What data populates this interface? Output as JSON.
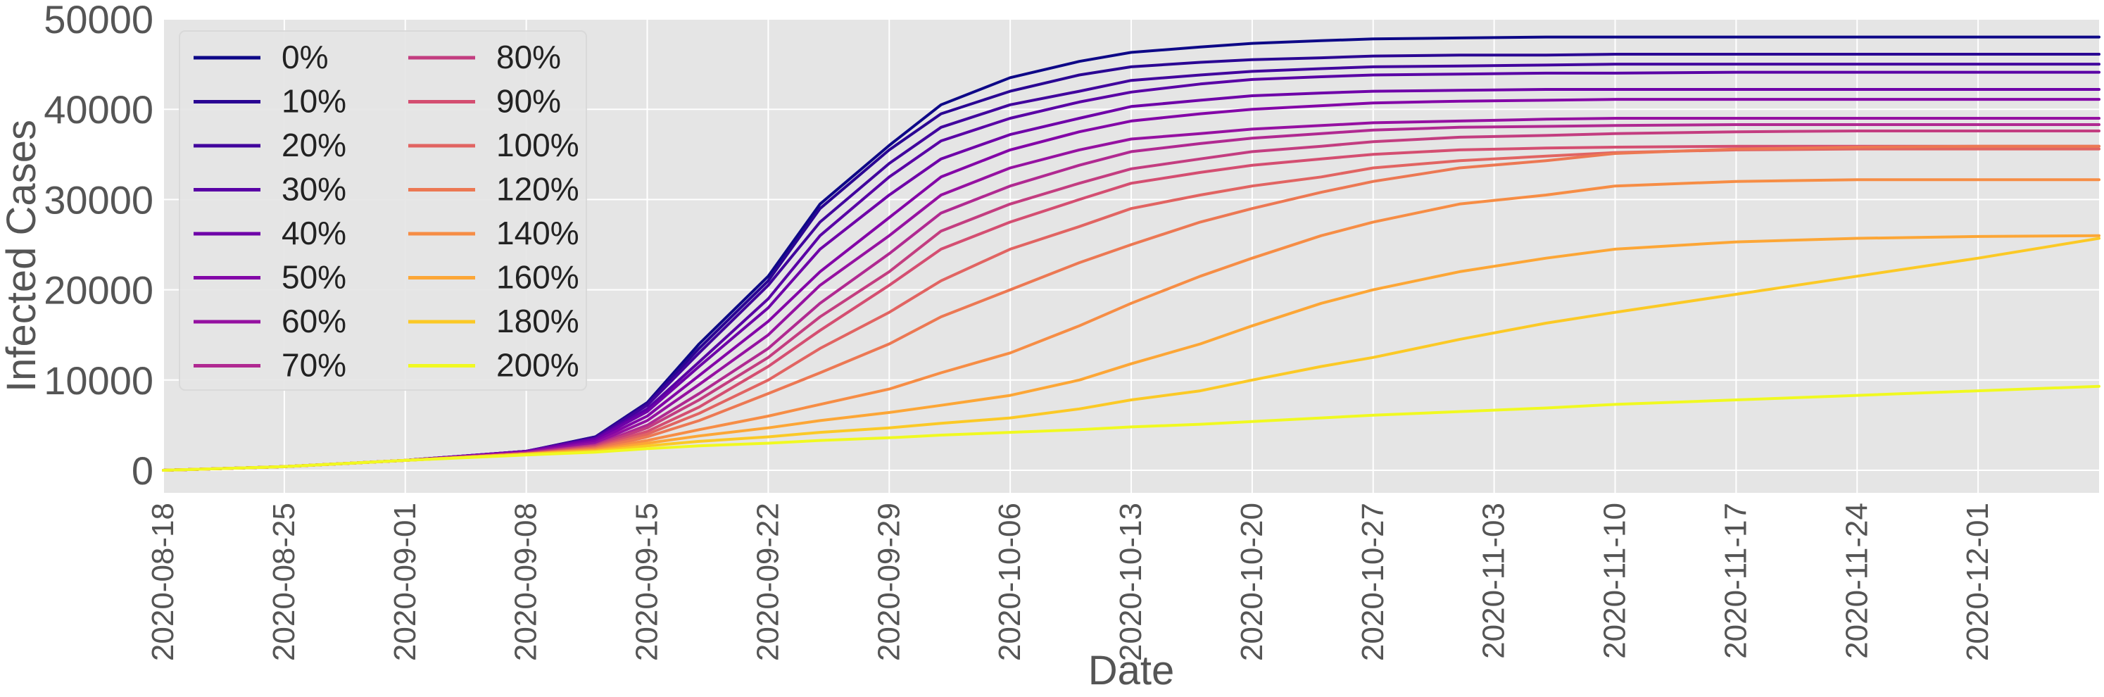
{
  "chart_data": {
    "type": "line",
    "xlabel": "Date",
    "ylabel": "Infected Cases",
    "ylim": [
      -2500,
      50000
    ],
    "xlim": [
      "2020-08-18",
      "2020-12-08"
    ],
    "y_ticks": [
      0,
      10000,
      20000,
      30000,
      40000,
      50000
    ],
    "x_ticks": [
      "2020-08-18",
      "2020-08-25",
      "2020-09-01",
      "2020-09-08",
      "2020-09-15",
      "2020-09-22",
      "2020-09-29",
      "2020-10-06",
      "2020-10-13",
      "2020-10-20",
      "2020-10-27",
      "2020-11-03",
      "2020-11-10",
      "2020-11-17",
      "2020-11-24",
      "2020-12-01"
    ],
    "grid": true,
    "background": "#e5e5e5",
    "legend_position": "top-left",
    "x_dates": [
      "2020-08-18",
      "2020-08-25",
      "2020-09-01",
      "2020-09-08",
      "2020-09-12",
      "2020-09-15",
      "2020-09-18",
      "2020-09-22",
      "2020-09-25",
      "2020-09-29",
      "2020-10-02",
      "2020-10-06",
      "2020-10-10",
      "2020-10-13",
      "2020-10-17",
      "2020-10-20",
      "2020-10-24",
      "2020-10-27",
      "2020-11-01",
      "2020-11-06",
      "2020-11-10",
      "2020-11-17",
      "2020-11-24",
      "2020-12-01",
      "2020-12-08"
    ],
    "series": [
      {
        "name": "0%",
        "color": "#0d0887",
        "values": [
          0,
          400,
          1100,
          2100,
          3700,
          7500,
          14000,
          21500,
          29500,
          36000,
          40500,
          43500,
          45300,
          46300,
          46900,
          47300,
          47600,
          47800,
          47900,
          48000,
          48000,
          48000,
          48000,
          48000,
          48000
        ]
      },
      {
        "name": "10%",
        "color": "#2a0593",
        "values": [
          0,
          400,
          1100,
          2100,
          3700,
          7400,
          13500,
          21000,
          29000,
          35500,
          39500,
          42000,
          43800,
          44700,
          45200,
          45500,
          45700,
          45900,
          46000,
          46000,
          46100,
          46100,
          46100,
          46100,
          46100
        ]
      },
      {
        "name": "20%",
        "color": "#41049d",
        "values": [
          0,
          400,
          1100,
          2100,
          3600,
          7200,
          13000,
          20500,
          27500,
          34000,
          38000,
          40500,
          42000,
          43200,
          43800,
          44200,
          44500,
          44700,
          44800,
          44900,
          45000,
          45000,
          45000,
          45000,
          45000
        ]
      },
      {
        "name": "30%",
        "color": "#5901a5",
        "values": [
          0,
          400,
          1100,
          2100,
          3500,
          6800,
          12000,
          19000,
          26000,
          32500,
          36500,
          39000,
          40800,
          41900,
          42800,
          43300,
          43600,
          43800,
          43900,
          44000,
          44000,
          44100,
          44100,
          44100,
          44100
        ]
      },
      {
        "name": "40%",
        "color": "#6e00a8",
        "values": [
          0,
          400,
          1100,
          2100,
          3400,
          6500,
          11500,
          18000,
          24500,
          30500,
          34500,
          37200,
          39000,
          40300,
          41000,
          41500,
          41800,
          42000,
          42100,
          42200,
          42200,
          42200,
          42200,
          42200,
          42200
        ]
      },
      {
        "name": "50%",
        "color": "#8305a7",
        "values": [
          0,
          400,
          1100,
          2000,
          3200,
          6000,
          10500,
          16500,
          22000,
          28000,
          32500,
          35500,
          37500,
          38700,
          39500,
          40000,
          40400,
          40700,
          40900,
          41000,
          41100,
          41100,
          41100,
          41100,
          41100
        ]
      },
      {
        "name": "60%",
        "color": "#9511a1",
        "values": [
          0,
          400,
          1100,
          2000,
          3000,
          5500,
          9500,
          15000,
          20500,
          26000,
          30500,
          33500,
          35500,
          36700,
          37300,
          37800,
          38200,
          38500,
          38700,
          38900,
          39000,
          39000,
          39000,
          39000,
          39000
        ]
      },
      {
        "name": "70%",
        "color": "#b02991",
        "values": [
          0,
          400,
          1100,
          1900,
          2800,
          5000,
          8500,
          13500,
          18500,
          24000,
          28500,
          31500,
          33800,
          35300,
          36200,
          36800,
          37300,
          37700,
          38000,
          38100,
          38200,
          38300,
          38300,
          38300,
          38300
        ]
      },
      {
        "name": "80%",
        "color": "#c33d80",
        "values": [
          0,
          400,
          1100,
          1900,
          2700,
          4700,
          7800,
          12500,
          17000,
          22000,
          26500,
          29500,
          31800,
          33400,
          34500,
          35300,
          35900,
          36400,
          36900,
          37100,
          37300,
          37500,
          37600,
          37600,
          37600
        ]
      },
      {
        "name": "90%",
        "color": "#d44e71",
        "values": [
          0,
          400,
          1100,
          1800,
          2600,
          4300,
          7000,
          11500,
          15500,
          20500,
          24500,
          27500,
          30000,
          31800,
          33000,
          33800,
          34500,
          35000,
          35500,
          35700,
          35800,
          35900,
          35900,
          35900,
          35900
        ]
      },
      {
        "name": "100%",
        "color": "#e16462",
        "values": [
          0,
          400,
          1100,
          1800,
          2500,
          4000,
          6300,
          10000,
          13500,
          17500,
          21000,
          24500,
          27000,
          29000,
          30500,
          31500,
          32500,
          33500,
          34300,
          34800,
          35200,
          35500,
          35600,
          35600,
          35600
        ]
      },
      {
        "name": "120%",
        "color": "#ec7853",
        "values": [
          0,
          400,
          1100,
          1800,
          2400,
          3700,
          5500,
          8500,
          10800,
          14000,
          17000,
          20000,
          23000,
          25000,
          27500,
          29000,
          30800,
          32000,
          33500,
          34300,
          35100,
          35600,
          35800,
          35900,
          35900
        ]
      },
      {
        "name": "140%",
        "color": "#f68d45",
        "values": [
          0,
          400,
          1100,
          1800,
          2300,
          3300,
          4500,
          6000,
          7300,
          9000,
          10800,
          13000,
          16000,
          18500,
          21500,
          23500,
          26000,
          27500,
          29500,
          30500,
          31500,
          32000,
          32200,
          32200,
          32200
        ]
      },
      {
        "name": "160%",
        "color": "#fca636",
        "values": [
          0,
          400,
          1100,
          1800,
          2200,
          3000,
          3800,
          4700,
          5500,
          6400,
          7200,
          8300,
          10000,
          11800,
          14000,
          16000,
          18500,
          20000,
          22000,
          23500,
          24500,
          25300,
          25700,
          25900,
          26000
        ]
      },
      {
        "name": "180%",
        "color": "#fbc926",
        "values": [
          0,
          400,
          1100,
          1800,
          2100,
          2700,
          3200,
          3700,
          4200,
          4700,
          5200,
          5800,
          6800,
          7800,
          8800,
          10000,
          11500,
          12500,
          14500,
          16300,
          17500,
          19500,
          21500,
          23500,
          25700
        ]
      },
      {
        "name": "200%",
        "color": "#f0f921",
        "values": [
          0,
          400,
          1100,
          1700,
          2000,
          2400,
          2700,
          3000,
          3300,
          3600,
          3900,
          4200,
          4500,
          4800,
          5100,
          5400,
          5800,
          6100,
          6500,
          6900,
          7300,
          7800,
          8300,
          8800,
          9300
        ]
      }
    ]
  }
}
